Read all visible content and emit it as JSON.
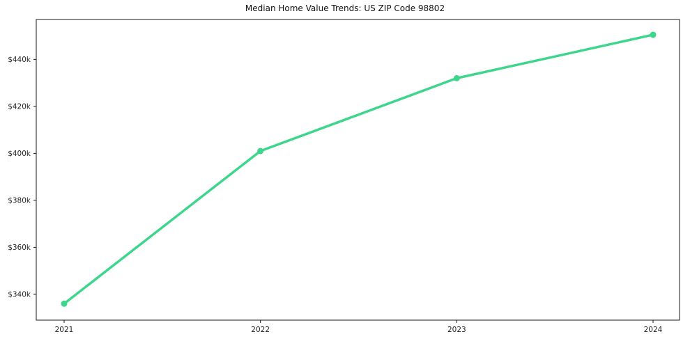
{
  "title": "Median Home Value Trends: US ZIP Code 98802",
  "chart_data": {
    "type": "line",
    "title": "Median Home Value Trends: US ZIP Code 98802",
    "xlabel": "",
    "ylabel": "",
    "x": [
      2021,
      2022,
      2023,
      2024
    ],
    "xtick_labels": [
      "2021",
      "2022",
      "2023",
      "2024"
    ],
    "series": [
      {
        "name": "Median Home Value",
        "values": [
          336000,
          401000,
          432000,
          450500
        ],
        "color": "#3dd68c"
      }
    ],
    "ylim": [
      329000,
      457000
    ],
    "yticks": [
      340000,
      360000,
      380000,
      400000,
      420000,
      440000
    ],
    "ytick_labels": [
      "$340k",
      "$360k",
      "$380k",
      "$400k",
      "$420k",
      "$440k"
    ],
    "grid": false,
    "legend": false,
    "line_width": 3.5,
    "marker_radius": 4.5,
    "axis_color": "#1a1a1a",
    "tick_label_color": "#262626",
    "tick_label_font_size": 10.5
  }
}
